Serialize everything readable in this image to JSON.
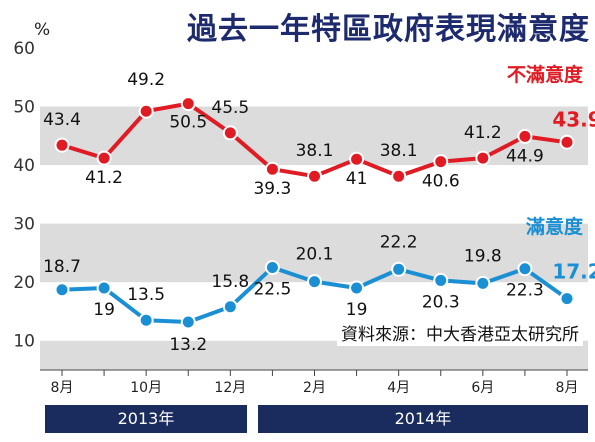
{
  "title": "過去一年特區政府表現滿意度",
  "unit": "%",
  "source": "資料來源：中大香港亞太研究所",
  "years": [
    "2013年",
    "2014年"
  ],
  "colors": {
    "dissatisfied": "#e01b24",
    "satisfied": "#1b8fd3",
    "title": "#1e2a6e",
    "year_bar": "#1a2c5e"
  },
  "chart_data": {
    "type": "line",
    "title": "過去一年特區政府表現滿意度",
    "ylabel": "%",
    "ylim": [
      5,
      60
    ],
    "yticks": [
      10,
      20,
      30,
      40,
      50,
      60
    ],
    "x_tick_labels": [
      "8月",
      "10月",
      "12月",
      "2月",
      "4月",
      "6月",
      "8月"
    ],
    "x_tick_label_positions": [
      0,
      2,
      4,
      6,
      8,
      10,
      12
    ],
    "x_points": 13,
    "grid": "horizontal bands",
    "series": [
      {
        "name": "不滿意度",
        "color": "#e01b24",
        "values": [
          43.4,
          41.2,
          49.2,
          50.5,
          45.5,
          39.3,
          38.1,
          41,
          38.1,
          40.6,
          41.2,
          44.9,
          43.9
        ],
        "labels": [
          "43.4",
          "41.2",
          "49.2",
          "50.5",
          "45.5",
          "39.3",
          "38.1",
          "41",
          "38.1",
          "40.6",
          "41.2",
          "44.9",
          "43.9"
        ]
      },
      {
        "name": "滿意度",
        "color": "#1b8fd3",
        "values": [
          18.7,
          19,
          13.5,
          13.2,
          15.8,
          22.5,
          20.1,
          19,
          22.2,
          20.3,
          19.8,
          22.3,
          17.2
        ],
        "labels": [
          "18.7",
          "19",
          "13.5",
          "13.2",
          "15.8",
          "22.5",
          "20.1",
          "19",
          "22.2",
          "20.3",
          "19.8",
          "22.3",
          "17.2"
        ]
      }
    ]
  }
}
